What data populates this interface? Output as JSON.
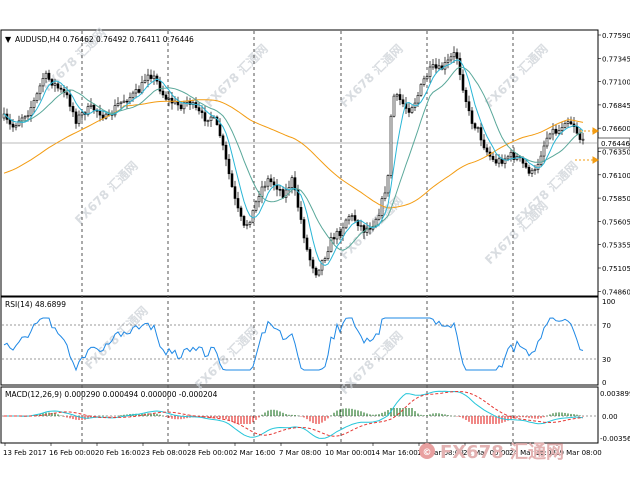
{
  "header": {
    "symbol_line": "AUDUSD,H4  0.76462 0.76492 0.76411 0.76446"
  },
  "price_axis": {
    "labels": [
      "0.77590",
      "0.77345",
      "0.77100",
      "0.76845",
      "0.76600",
      "0.76350",
      "0.76100",
      "0.75850",
      "0.75605",
      "0.75355",
      "0.75105",
      "0.74860"
    ],
    "current_price": "0.76446"
  },
  "rsi": {
    "label": "RSI(14) 48.6899",
    "levels": [
      "100",
      "70",
      "30",
      "0"
    ]
  },
  "macd": {
    "label": "MACD(12,26,9) 0.000290 0.000494 0.000000 -0.000204",
    "levels": [
      "0.003899",
      "0.00",
      "-0.003566"
    ]
  },
  "time_axis": {
    "labels": [
      "13 Feb 2017",
      "16 Feb 00:00",
      "20 Feb 16:00",
      "23 Feb 08:00",
      "28 Feb 00:00",
      "2 Mar 16:00",
      "7 Mar 08:00",
      "10 Mar 00:00",
      "14 Mar 16:00",
      "17 Mar 08:00",
      "22 Mar 00:00",
      "24 Mar 16:00",
      "29 Mar 08:00"
    ]
  },
  "watermark": {
    "text": "FX678 汇通网"
  },
  "colors": {
    "candle": "#000000",
    "ma_fast": "#29b6d6",
    "ma_mid": "#5aa89a",
    "ma_slow": "#f39c12",
    "rsi_line": "#1e88e5",
    "macd_line": "#26c6da",
    "signal_line": "#e53935",
    "hist_pos": "#2e7d32",
    "hist_neg": "#e53935",
    "watermark": "#c9ced4"
  }
}
